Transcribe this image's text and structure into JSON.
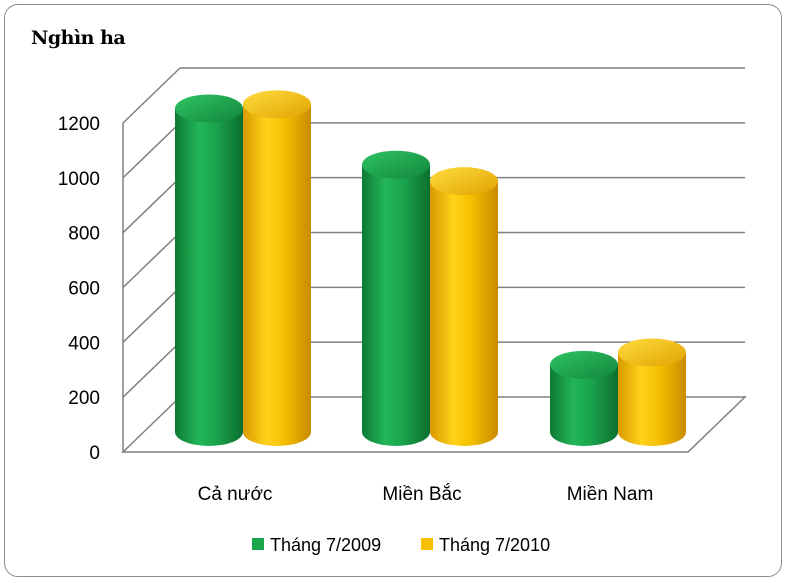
{
  "chart_data": {
    "type": "bar",
    "title": "Nghìn ha",
    "categories": [
      "Cả nước",
      "Miền Bắc",
      "Miền Nam"
    ],
    "series": [
      {
        "name": "Tháng 7/2009",
        "color": "#19a64b",
        "values": [
          1180,
          975,
          245
        ]
      },
      {
        "name": "Tháng 7/2010",
        "color": "#f5c000",
        "values": [
          1195,
          915,
          290
        ]
      }
    ],
    "ylim": [
      0,
      1200
    ],
    "yticks": [
      0,
      200,
      400,
      600,
      800,
      1000,
      1200
    ],
    "grid": true,
    "legend": "bottom",
    "style": "3d-cylinder"
  }
}
